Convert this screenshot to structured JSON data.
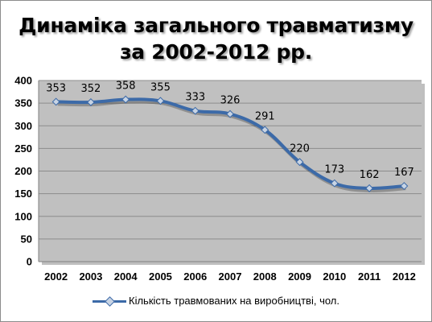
{
  "chart_data": {
    "type": "line",
    "title_lines": [
      "Динаміка загального травматизму",
      "за 2002-2012 рр."
    ],
    "categories": [
      "2002",
      "2003",
      "2004",
      "2005",
      "2006",
      "2007",
      "2008",
      "2009",
      "2010",
      "2011",
      "2012"
    ],
    "series": [
      {
        "name": "Кількість травмованих на виробництві, чол.",
        "values": [
          353,
          352,
          358,
          355,
          333,
          326,
          291,
          220,
          173,
          162,
          167
        ],
        "color": "#3c6aa8"
      }
    ],
    "ylim": [
      0,
      400
    ],
    "yticks": [
      0,
      50,
      100,
      150,
      200,
      250,
      300,
      350,
      400
    ],
    "grid": true,
    "plot_background": "#c0c0c0",
    "legend_position": "bottom",
    "data_labels": true
  }
}
